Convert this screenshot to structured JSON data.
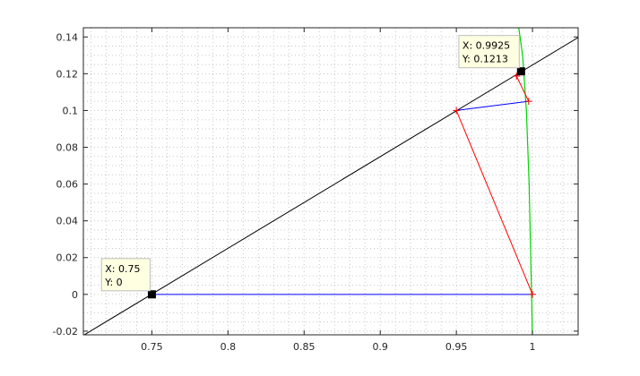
{
  "chart_data": {
    "type": "line",
    "title": "",
    "xlabel": "",
    "ylabel": "",
    "xlim": [
      0.705,
      1.03
    ],
    "ylim": [
      -0.022,
      0.145
    ],
    "x_ticks": [
      0.75,
      0.8,
      0.85,
      0.9,
      0.95,
      1
    ],
    "x_tick_labels": [
      "0.75",
      "0.8",
      "0.85",
      "0.9",
      "0.95",
      "1"
    ],
    "y_ticks": [
      -0.02,
      0,
      0.02,
      0.04,
      0.06,
      0.08,
      0.1,
      0.12,
      0.14
    ],
    "y_tick_labels": [
      "-0.02",
      "0",
      "0.02",
      "0.04",
      "0.06",
      "0.08",
      "0.1",
      "0.12",
      "0.14"
    ],
    "grid": "minor-dotted",
    "box": true,
    "series": [
      {
        "kind": "line",
        "color": "#000000",
        "x": [
          0.705,
          1.03
        ],
        "y": [
          -0.0223,
          0.1397
        ]
      },
      {
        "kind": "curve",
        "color": "#00d400",
        "x": [
          0.9999,
          0.9994,
          0.9978,
          0.996,
          0.9935,
          0.991
        ],
        "y": [
          -0.022,
          0.0,
          0.06,
          0.1,
          0.13,
          0.145
        ]
      },
      {
        "kind": "segment",
        "color": "#0000ff",
        "x": [
          0.75,
          1.0
        ],
        "y": [
          0.0,
          0.0
        ]
      },
      {
        "kind": "segment",
        "color": "#ff0000",
        "x": [
          1.0,
          0.95
        ],
        "y": [
          0.0,
          0.1
        ]
      },
      {
        "kind": "segment",
        "color": "#0000ff",
        "x": [
          0.95,
          0.9975
        ],
        "y": [
          0.1,
          0.105
        ]
      },
      {
        "kind": "segment",
        "color": "#ff0000",
        "x": [
          0.9975,
          0.9895
        ],
        "y": [
          0.105,
          0.1187
        ]
      },
      {
        "kind": "segment",
        "color": "#0000ff",
        "x": [
          0.9895,
          0.9925
        ],
        "y": [
          0.1187,
          0.1213
        ]
      }
    ],
    "markers": [
      {
        "style": "plus",
        "color": "#ff0000",
        "x": 1.0,
        "y": 0.0
      },
      {
        "style": "plus",
        "color": "#ff0000",
        "x": 0.95,
        "y": 0.1
      },
      {
        "style": "plus",
        "color": "#ff0000",
        "x": 0.9975,
        "y": 0.105
      },
      {
        "style": "plus",
        "color": "#ff0000",
        "x": 0.9895,
        "y": 0.1187
      },
      {
        "style": "square",
        "color": "#000000",
        "x": 0.75,
        "y": 0.0
      },
      {
        "style": "square",
        "color": "#000000",
        "x": 0.9925,
        "y": 0.1213
      }
    ],
    "datatips": [
      {
        "x": 0.75,
        "y": 0,
        "lines": [
          "X: 0.75",
          "Y: 0"
        ]
      },
      {
        "x": 0.9925,
        "y": 0.1213,
        "lines": [
          "X: 0.9925",
          "Y: 0.1213"
        ]
      }
    ]
  }
}
